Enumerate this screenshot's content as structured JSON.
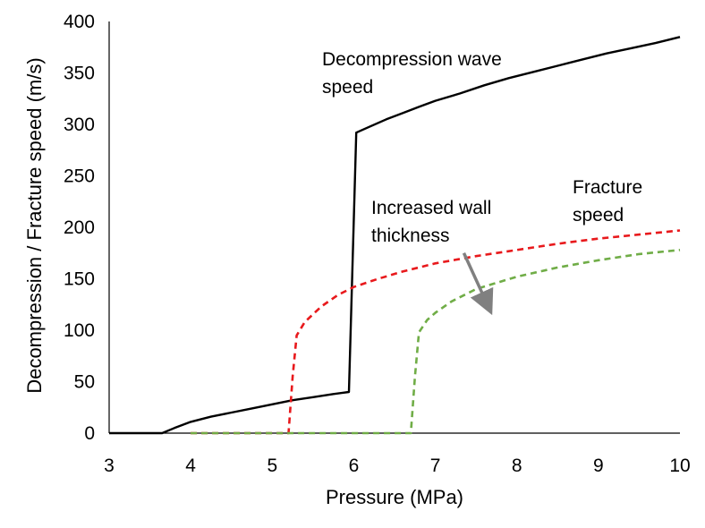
{
  "chart_data": {
    "type": "line",
    "title": "",
    "xlabel": "Pressure (MPa)",
    "ylabel": "Decompression / Fracture speed (m/s)",
    "xlim": [
      3,
      10
    ],
    "ylim": [
      0,
      400
    ],
    "xticks": [
      3,
      4,
      5,
      6,
      7,
      8,
      9,
      10
    ],
    "yticks": [
      0,
      50,
      100,
      150,
      200,
      250,
      300,
      350,
      400
    ],
    "grid": false,
    "legend": "none",
    "series": [
      {
        "color": "#000000",
        "style": "solid",
        "x": [
          3.0,
          3.65,
          3.8,
          4.0,
          4.25,
          4.5,
          4.75,
          5.0,
          5.25,
          5.5,
          5.75,
          5.94,
          6.03,
          6.2,
          6.4,
          6.6,
          6.8,
          7.0,
          7.3,
          7.6,
          7.9,
          8.2,
          8.5,
          8.8,
          9.1,
          9.4,
          9.7,
          10.0
        ],
        "y": [
          0,
          0,
          5,
          11,
          16,
          20,
          24,
          28,
          32,
          35,
          38,
          40,
          292,
          298,
          305,
          311,
          317,
          323,
          330,
          338,
          345,
          351,
          357,
          363,
          369,
          374,
          379,
          385
        ]
      },
      {
        "color": "#e8191c",
        "style": "dashed",
        "x": [
          4.0,
          5.2,
          5.25,
          5.3,
          5.4,
          5.6,
          5.8,
          6.0,
          6.3,
          6.6,
          7.0,
          7.5,
          8.0,
          8.5,
          9.0,
          9.5,
          10.0
        ],
        "y": [
          0,
          0,
          55,
          95,
          108,
          123,
          134,
          142,
          150,
          157,
          165,
          172,
          178,
          184,
          189,
          193,
          197
        ]
      },
      {
        "color": "#70ad47",
        "style": "dashed",
        "x": [
          4.0,
          6.7,
          6.75,
          6.8,
          6.9,
          7.0,
          7.2,
          7.5,
          8.0,
          8.5,
          9.0,
          9.5,
          10.0
        ],
        "y": [
          0,
          0,
          55,
          98,
          110,
          117,
          128,
          140,
          152,
          161,
          168,
          174,
          178
        ]
      }
    ],
    "annotations": [
      {
        "lines": [
          "Decompression wave",
          "speed"
        ]
      },
      {
        "lines": [
          "Fracture",
          "speed"
        ]
      },
      {
        "lines": [
          "Increased wall",
          "thickness"
        ]
      }
    ],
    "arrow": {
      "from": [
        7.35,
        175
      ],
      "to": [
        7.65,
        123
      ],
      "color": "#808080"
    }
  }
}
